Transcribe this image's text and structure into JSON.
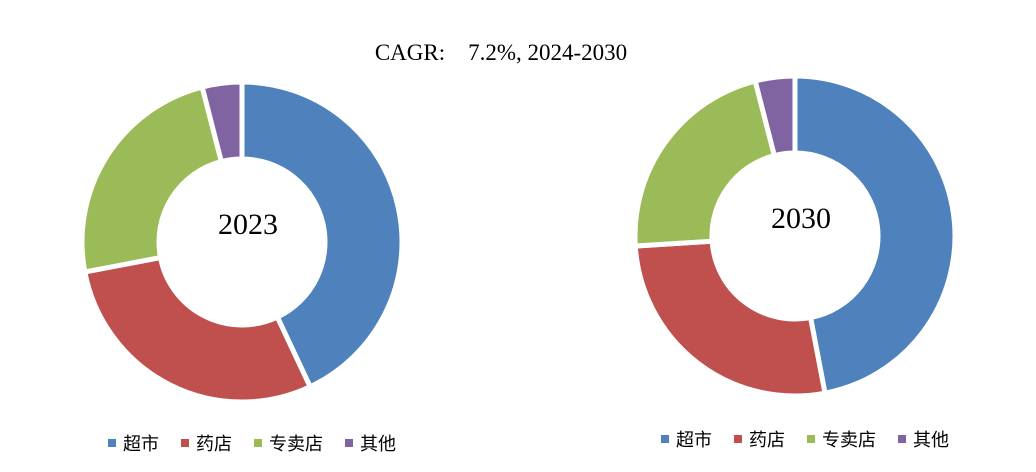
{
  "title": "CAGR:    7.2%, 2024-2030",
  "colors": {
    "超市": "#4F81BD",
    "药店": "#C0504D",
    "专卖店": "#9BBB59",
    "其他": "#8064A2"
  },
  "chart_data": [
    {
      "type": "pie",
      "center_label": "2023",
      "categories": [
        "超市",
        "药店",
        "专卖店",
        "其他"
      ],
      "values": [
        43,
        29,
        24,
        4
      ],
      "legend_position": "bottom"
    },
    {
      "type": "pie",
      "center_label": "2030",
      "categories": [
        "超市",
        "药店",
        "专卖店",
        "其他"
      ],
      "values": [
        47,
        27,
        22,
        4
      ],
      "legend_position": "bottom"
    }
  ]
}
